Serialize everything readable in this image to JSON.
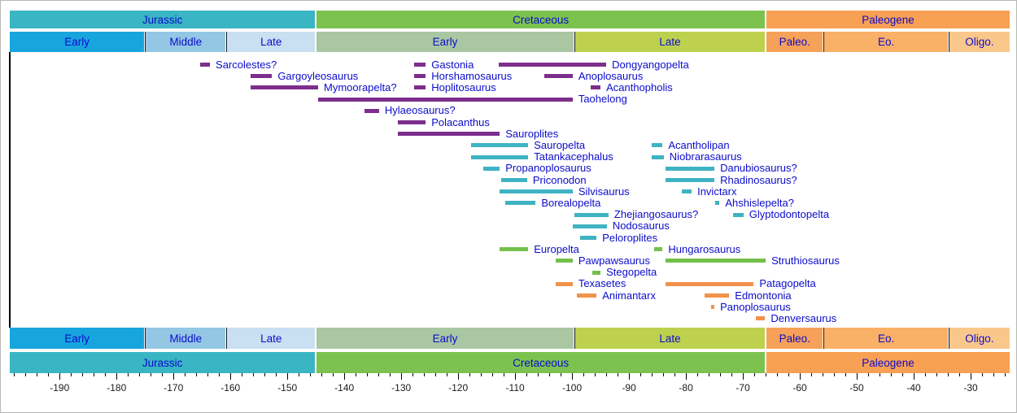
{
  "chart_data": {
    "type": "bar",
    "subtype": "horizontal-range-timeline",
    "legend": "none",
    "grid": "off",
    "axis": {
      "min": -198.9,
      "max": -23.0,
      "major_tick_step": 10,
      "minor_tick_step": 2,
      "tick_labels": [
        "-190",
        "-180",
        "-170",
        "-160",
        "-150",
        "-140",
        "-130",
        "-120",
        "-110",
        "-100",
        "-90",
        "-80",
        "-70",
        "-60",
        "-50",
        "-40",
        "-30"
      ]
    },
    "colors": {
      "jurassic": "#3ab5c3",
      "early_jurassic": "#18a5de",
      "middle_jurassic": "#93c7e4",
      "late_jurassic": "#c9dff2",
      "cretaceous": "#7cc24f",
      "early_cretaceous": "#a9c7a3",
      "late_cretaceous": "#bdd14f",
      "paleogene": "#f8a053",
      "paleocene": "#f6a159",
      "eocene": "#f9b067",
      "oligocene": "#fac78b",
      "purple": "#7d2e8d",
      "teal": "#3fb3c3",
      "green": "#74c04c",
      "orange": "#f0924a",
      "label_text": "#0c0ccc",
      "axis_text": "#1a1a1a"
    },
    "periods": [
      {
        "label": "Jurassic",
        "from": -198.9,
        "to": -145.0,
        "color": "jurassic"
      },
      {
        "label": "Cretaceous",
        "from": -145.0,
        "to": -66.0,
        "color": "cretaceous"
      },
      {
        "label": "Paleogene",
        "from": -66.0,
        "to": -23.0,
        "color": "paleogene"
      }
    ],
    "epochs": [
      {
        "label": "Early",
        "period": "jurassic",
        "from": -198.9,
        "to": -175.0,
        "color": "early_jurassic"
      },
      {
        "label": "Middle",
        "period": "jurassic",
        "from": -175.0,
        "to": -160.7,
        "color": "middle_jurassic"
      },
      {
        "label": "Late",
        "period": "jurassic",
        "from": -160.7,
        "to": -145.0,
        "color": "late_jurassic"
      },
      {
        "label": "Early",
        "period": "cretaceous",
        "from": -145.0,
        "to": -99.6,
        "color": "early_cretaceous"
      },
      {
        "label": "Late",
        "period": "cretaceous",
        "from": -99.6,
        "to": -66.0,
        "color": "late_cretaceous"
      },
      {
        "label": "Paleo.",
        "period": "paleogene",
        "from": -66.0,
        "to": -55.8,
        "color": "paleocene"
      },
      {
        "label": "Eo.",
        "period": "paleogene",
        "from": -55.8,
        "to": -33.9,
        "color": "eocene"
      },
      {
        "label": "Oligo.",
        "period": "paleogene",
        "from": -33.9,
        "to": -23.0,
        "color": "oligocene"
      }
    ],
    "taxa": [
      {
        "name": "Sarcolestes?",
        "from": -165.3,
        "to": -163.6,
        "row": 0,
        "group": "purple"
      },
      {
        "name": "Gastonia",
        "from": -127.7,
        "to": -125.7,
        "row": 0,
        "group": "purple"
      },
      {
        "name": "Dongyangopelta",
        "from": -112.9,
        "to": -94.0,
        "row": 0,
        "group": "purple"
      },
      {
        "name": "Gargoyleosaurus",
        "from": -156.4,
        "to": -152.7,
        "row": 1,
        "group": "purple"
      },
      {
        "name": "Horshamosaurus",
        "from": -127.7,
        "to": -125.7,
        "row": 1,
        "group": "purple"
      },
      {
        "name": "Anoplosaurus",
        "from": -104.9,
        "to": -99.9,
        "row": 1,
        "group": "purple"
      },
      {
        "name": "Mymoorapelta?",
        "from": -156.4,
        "to": -144.6,
        "row": 2,
        "group": "purple"
      },
      {
        "name": "Hoplitosaurus",
        "from": -127.7,
        "to": -125.7,
        "row": 2,
        "group": "purple"
      },
      {
        "name": "Acanthopholis",
        "from": -96.7,
        "to": -95.0,
        "row": 2,
        "group": "purple"
      },
      {
        "name": "Taohelong",
        "from": -144.6,
        "to": -99.9,
        "row": 3,
        "group": "purple"
      },
      {
        "name": "Hylaeosaurus?",
        "from": -136.4,
        "to": -133.9,
        "row": 4,
        "group": "purple"
      },
      {
        "name": "Polacanthus",
        "from": -130.6,
        "to": -125.7,
        "row": 5,
        "group": "purple"
      },
      {
        "name": "Sauroplites",
        "from": -130.6,
        "to": -112.7,
        "row": 6,
        "group": "purple"
      },
      {
        "name": "Sauropelta",
        "from": -117.7,
        "to": -107.7,
        "row": 7,
        "group": "teal"
      },
      {
        "name": "Acantholipan",
        "from": -86.0,
        "to": -84.1,
        "row": 7,
        "group": "teal"
      },
      {
        "name": "Tatankacephalus",
        "from": -117.7,
        "to": -107.7,
        "row": 8,
        "group": "teal"
      },
      {
        "name": "Niobrarasaurus",
        "from": -86.0,
        "to": -83.9,
        "row": 8,
        "group": "teal"
      },
      {
        "name": "Propanoplosaurus",
        "from": -115.6,
        "to": -112.7,
        "row": 9,
        "group": "teal"
      },
      {
        "name": "Danubiosaurus?",
        "from": -83.6,
        "to": -75.0,
        "row": 9,
        "group": "teal"
      },
      {
        "name": "Priconodon",
        "from": -112.4,
        "to": -107.9,
        "row": 10,
        "group": "teal"
      },
      {
        "name": "Rhadinosaurus?",
        "from": -83.6,
        "to": -75.0,
        "row": 10,
        "group": "teal"
      },
      {
        "name": "Silvisaurus",
        "from": -112.7,
        "to": -99.9,
        "row": 11,
        "group": "teal"
      },
      {
        "name": "Invictarx",
        "from": -80.7,
        "to": -79.0,
        "row": 11,
        "group": "teal"
      },
      {
        "name": "Borealopelta",
        "from": -111.7,
        "to": -106.4,
        "row": 12,
        "group": "teal"
      },
      {
        "name": "Ahshislepelta?",
        "from": -74.9,
        "to": -74.1,
        "row": 12,
        "group": "teal"
      },
      {
        "name": "Zhejiangosaurus?",
        "from": -99.6,
        "to": -93.6,
        "row": 13,
        "group": "teal"
      },
      {
        "name": "Glyptodontopelta",
        "from": -71.7,
        "to": -69.9,
        "row": 13,
        "group": "teal"
      },
      {
        "name": "Nodosaurus",
        "from": -99.9,
        "to": -93.9,
        "row": 14,
        "group": "teal"
      },
      {
        "name": "Peloroplites",
        "from": -98.6,
        "to": -95.7,
        "row": 15,
        "group": "teal"
      },
      {
        "name": "Europelta",
        "from": -112.7,
        "to": -107.7,
        "row": 16,
        "group": "green"
      },
      {
        "name": "Hungarosaurus",
        "from": -85.6,
        "to": -84.1,
        "row": 16,
        "group": "green"
      },
      {
        "name": "Pawpawsaurus",
        "from": -102.9,
        "to": -99.9,
        "row": 17,
        "group": "green"
      },
      {
        "name": "Struthiosaurus",
        "from": -83.6,
        "to": -66.0,
        "row": 17,
        "group": "green"
      },
      {
        "name": "Stegopelta",
        "from": -96.4,
        "to": -95.0,
        "row": 18,
        "group": "green"
      },
      {
        "name": "Texasetes",
        "from": -102.9,
        "to": -99.9,
        "row": 19,
        "group": "orange"
      },
      {
        "name": "Patagopelta",
        "from": -83.6,
        "to": -68.1,
        "row": 19,
        "group": "orange"
      },
      {
        "name": "Animantarx",
        "from": -99.1,
        "to": -95.7,
        "row": 20,
        "group": "orange"
      },
      {
        "name": "Edmontonia",
        "from": -76.7,
        "to": -72.4,
        "row": 20,
        "group": "orange"
      },
      {
        "name": "Panoplosaurus",
        "from": -75.6,
        "to": -75.0,
        "row": 21,
        "group": "orange"
      },
      {
        "name": "Denversaurus",
        "from": -67.7,
        "to": -66.1,
        "row": 22,
        "group": "orange"
      }
    ]
  }
}
